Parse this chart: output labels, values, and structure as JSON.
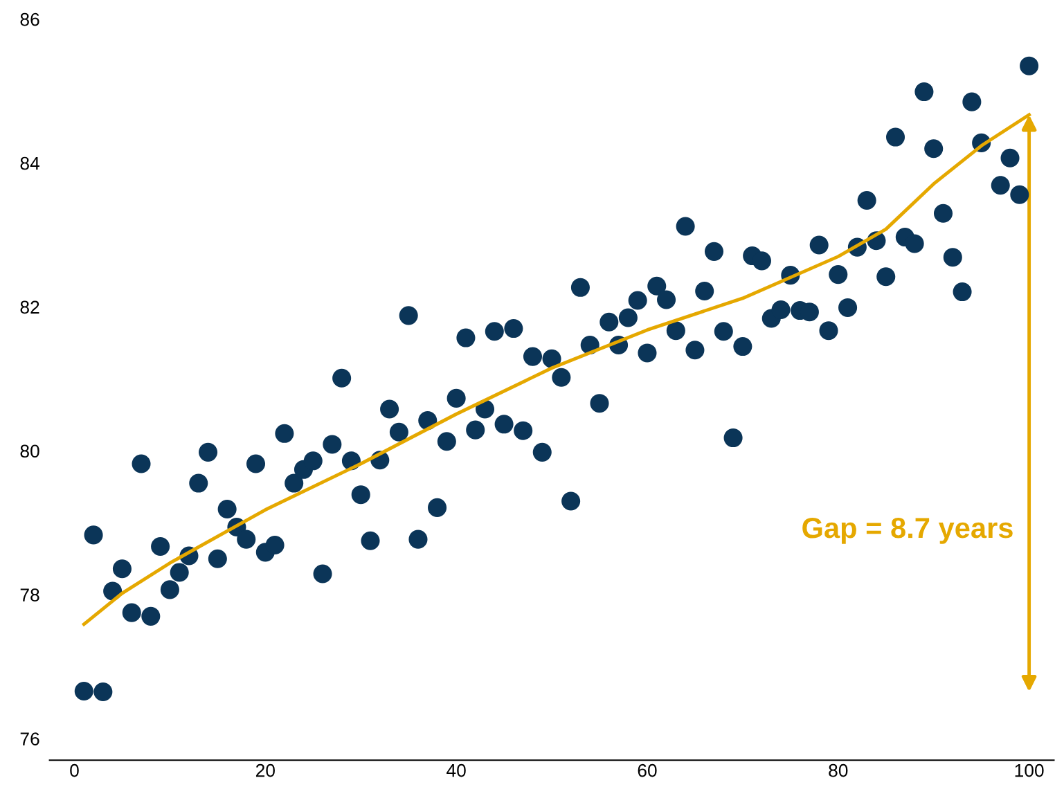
{
  "chart_data": {
    "type": "scatter",
    "xlim": [
      -2.6,
      102.6
    ],
    "ylim": [
      75.7,
      86
    ],
    "xticks": [
      0,
      20,
      40,
      60,
      80,
      100
    ],
    "yticks": [
      76,
      78,
      80,
      82,
      84,
      86
    ],
    "grid": false,
    "legend": false,
    "marker": "circle",
    "annotations": [
      "Gap = 8.7 years"
    ],
    "series": [
      {
        "color": "#0b3558",
        "x": [
          1,
          2,
          3,
          4,
          5,
          6,
          7,
          8,
          9,
          10,
          11,
          12,
          13,
          14,
          15,
          16,
          17,
          18,
          19,
          20,
          21,
          22,
          23,
          24,
          25,
          26,
          27,
          28,
          29,
          30,
          31,
          32,
          33,
          34,
          35,
          36,
          37,
          38,
          39,
          40,
          41,
          42,
          43,
          44,
          45,
          46,
          47,
          48,
          49,
          50,
          51,
          52,
          53,
          54,
          55,
          56,
          57,
          58,
          59,
          60,
          61,
          62,
          63,
          64,
          65,
          66,
          67,
          68,
          69,
          70,
          71,
          72,
          73,
          74,
          75,
          76,
          77,
          78,
          79,
          80,
          81,
          82,
          83,
          84,
          85,
          86,
          87,
          88,
          89,
          90,
          91,
          92,
          93,
          94,
          95,
          97,
          98,
          99,
          100
        ],
        "values": [
          76.66,
          78.83,
          76.65,
          78.05,
          78.36,
          77.75,
          79.82,
          77.7,
          78.67,
          78.07,
          78.31,
          78.54,
          79.55,
          79.98,
          78.5,
          79.19,
          78.94,
          78.77,
          79.82,
          78.59,
          78.69,
          80.24,
          79.55,
          79.74,
          79.86,
          78.29,
          80.09,
          81.01,
          79.86,
          79.39,
          78.75,
          79.87,
          80.58,
          80.26,
          81.88,
          78.77,
          80.42,
          79.21,
          80.13,
          80.73,
          81.57,
          80.29,
          80.58,
          81.66,
          80.37,
          81.7,
          80.28,
          81.31,
          79.98,
          81.28,
          81.02,
          79.3,
          82.27,
          81.47,
          80.66,
          81.79,
          81.47,
          81.85,
          82.09,
          81.36,
          82.29,
          82.1,
          81.67,
          83.12,
          81.4,
          82.22,
          82.77,
          81.66,
          80.18,
          81.45,
          82.71,
          82.64,
          81.84,
          81.96,
          82.44,
          81.95,
          81.93,
          82.86,
          81.67,
          82.45,
          81.99,
          82.83,
          83.48,
          82.92,
          82.42,
          84.36,
          82.97,
          82.88,
          84.99,
          84.2,
          83.3,
          82.69,
          82.21,
          84.85,
          84.28,
          83.69,
          84.07,
          83.56,
          85.35
        ]
      },
      {
        "type": "line",
        "color": "#e5a800",
        "line_style": "solid",
        "marker": "none",
        "x": [
          1,
          5,
          10,
          20,
          30,
          40,
          50,
          60,
          70,
          80,
          85,
          90,
          95,
          100
        ],
        "values": [
          77.59,
          78.02,
          78.44,
          79.18,
          79.82,
          80.51,
          81.15,
          81.68,
          82.12,
          82.7,
          83.08,
          83.71,
          84.24,
          84.67
        ]
      }
    ]
  }
}
